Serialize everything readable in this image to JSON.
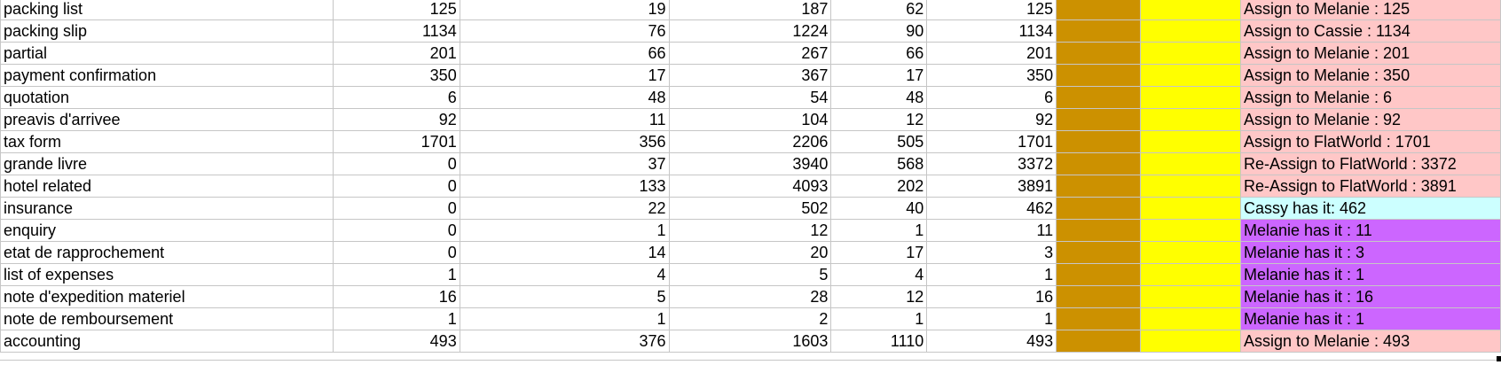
{
  "colors": {
    "gridline": "#c6c6c6",
    "fill_orange": "#cc9100",
    "fill_yellow": "#ffff00",
    "note_pink": "#ffc7c7",
    "note_cyan": "#ccffff",
    "note_purple": "#cc66ff"
  },
  "rows": [
    {
      "name": "packing list",
      "a": "125",
      "b": "19",
      "c": "187",
      "d": "62",
      "e": "125",
      "note": "Assign to Melanie : 125",
      "note_color": "#ffc7c7"
    },
    {
      "name": "packing slip",
      "a": "1134",
      "b": "76",
      "c": "1224",
      "d": "90",
      "e": "1134",
      "note": "Assign to Cassie : 1134",
      "note_color": "#ffc7c7"
    },
    {
      "name": "partial",
      "a": "201",
      "b": "66",
      "c": "267",
      "d": "66",
      "e": "201",
      "note": "Assign to Melanie : 201",
      "note_color": "#ffc7c7"
    },
    {
      "name": "payment confirmation",
      "a": "350",
      "b": "17",
      "c": "367",
      "d": "17",
      "e": "350",
      "note": "Assign to Melanie : 350",
      "note_color": "#ffc7c7"
    },
    {
      "name": "quotation",
      "a": "6",
      "b": "48",
      "c": "54",
      "d": "48",
      "e": "6",
      "note": "Assign to Melanie : 6",
      "note_color": "#ffc7c7"
    },
    {
      "name": "preavis d'arrivee",
      "a": "92",
      "b": "11",
      "c": "104",
      "d": "12",
      "e": "92",
      "note": "Assign to Melanie : 92",
      "note_color": "#ffc7c7"
    },
    {
      "name": "tax form",
      "a": "1701",
      "b": "356",
      "c": "2206",
      "d": "505",
      "e": "1701",
      "note": "Assign to FlatWorld : 1701",
      "note_color": "#ffc7c7"
    },
    {
      "name": "grande livre",
      "a": "0",
      "b": "37",
      "c": "3940",
      "d": "568",
      "e": "3372",
      "note": "Re-Assign to FlatWorld : 3372",
      "note_color": "#ffc7c7"
    },
    {
      "name": "hotel related",
      "a": "0",
      "b": "133",
      "c": "4093",
      "d": "202",
      "e": "3891",
      "note": "Re-Assign to FlatWorld : 3891",
      "note_color": "#ffc7c7"
    },
    {
      "name": "insurance",
      "a": "0",
      "b": "22",
      "c": "502",
      "d": "40",
      "e": "462",
      "note": "Cassy has it: 462",
      "note_color": "#ccffff"
    },
    {
      "name": "enquiry",
      "a": "0",
      "b": "1",
      "c": "12",
      "d": "1",
      "e": "11",
      "note": "Melanie has it : 11",
      "note_color": "#cc66ff"
    },
    {
      "name": "etat de rapprochement",
      "a": "0",
      "b": "14",
      "c": "20",
      "d": "17",
      "e": "3",
      "note": "Melanie has it : 3",
      "note_color": "#cc66ff"
    },
    {
      "name": "list of expenses",
      "a": "1",
      "b": "4",
      "c": "5",
      "d": "4",
      "e": "1",
      "note": "Melanie has it : 1",
      "note_color": "#cc66ff"
    },
    {
      "name": "note d'expedition materiel",
      "a": "16",
      "b": "5",
      "c": "28",
      "d": "12",
      "e": "16",
      "note": "Melanie has it : 16",
      "note_color": "#cc66ff"
    },
    {
      "name": "note de remboursement",
      "a": "1",
      "b": "1",
      "c": "2",
      "d": "1",
      "e": "1",
      "note": "Melanie has it : 1",
      "note_color": "#cc66ff"
    },
    {
      "name": "accounting",
      "a": "493",
      "b": "376",
      "c": "1603",
      "d": "1110",
      "e": "493",
      "note": "Assign to Melanie : 493",
      "note_color": "#ffc7c7"
    }
  ]
}
